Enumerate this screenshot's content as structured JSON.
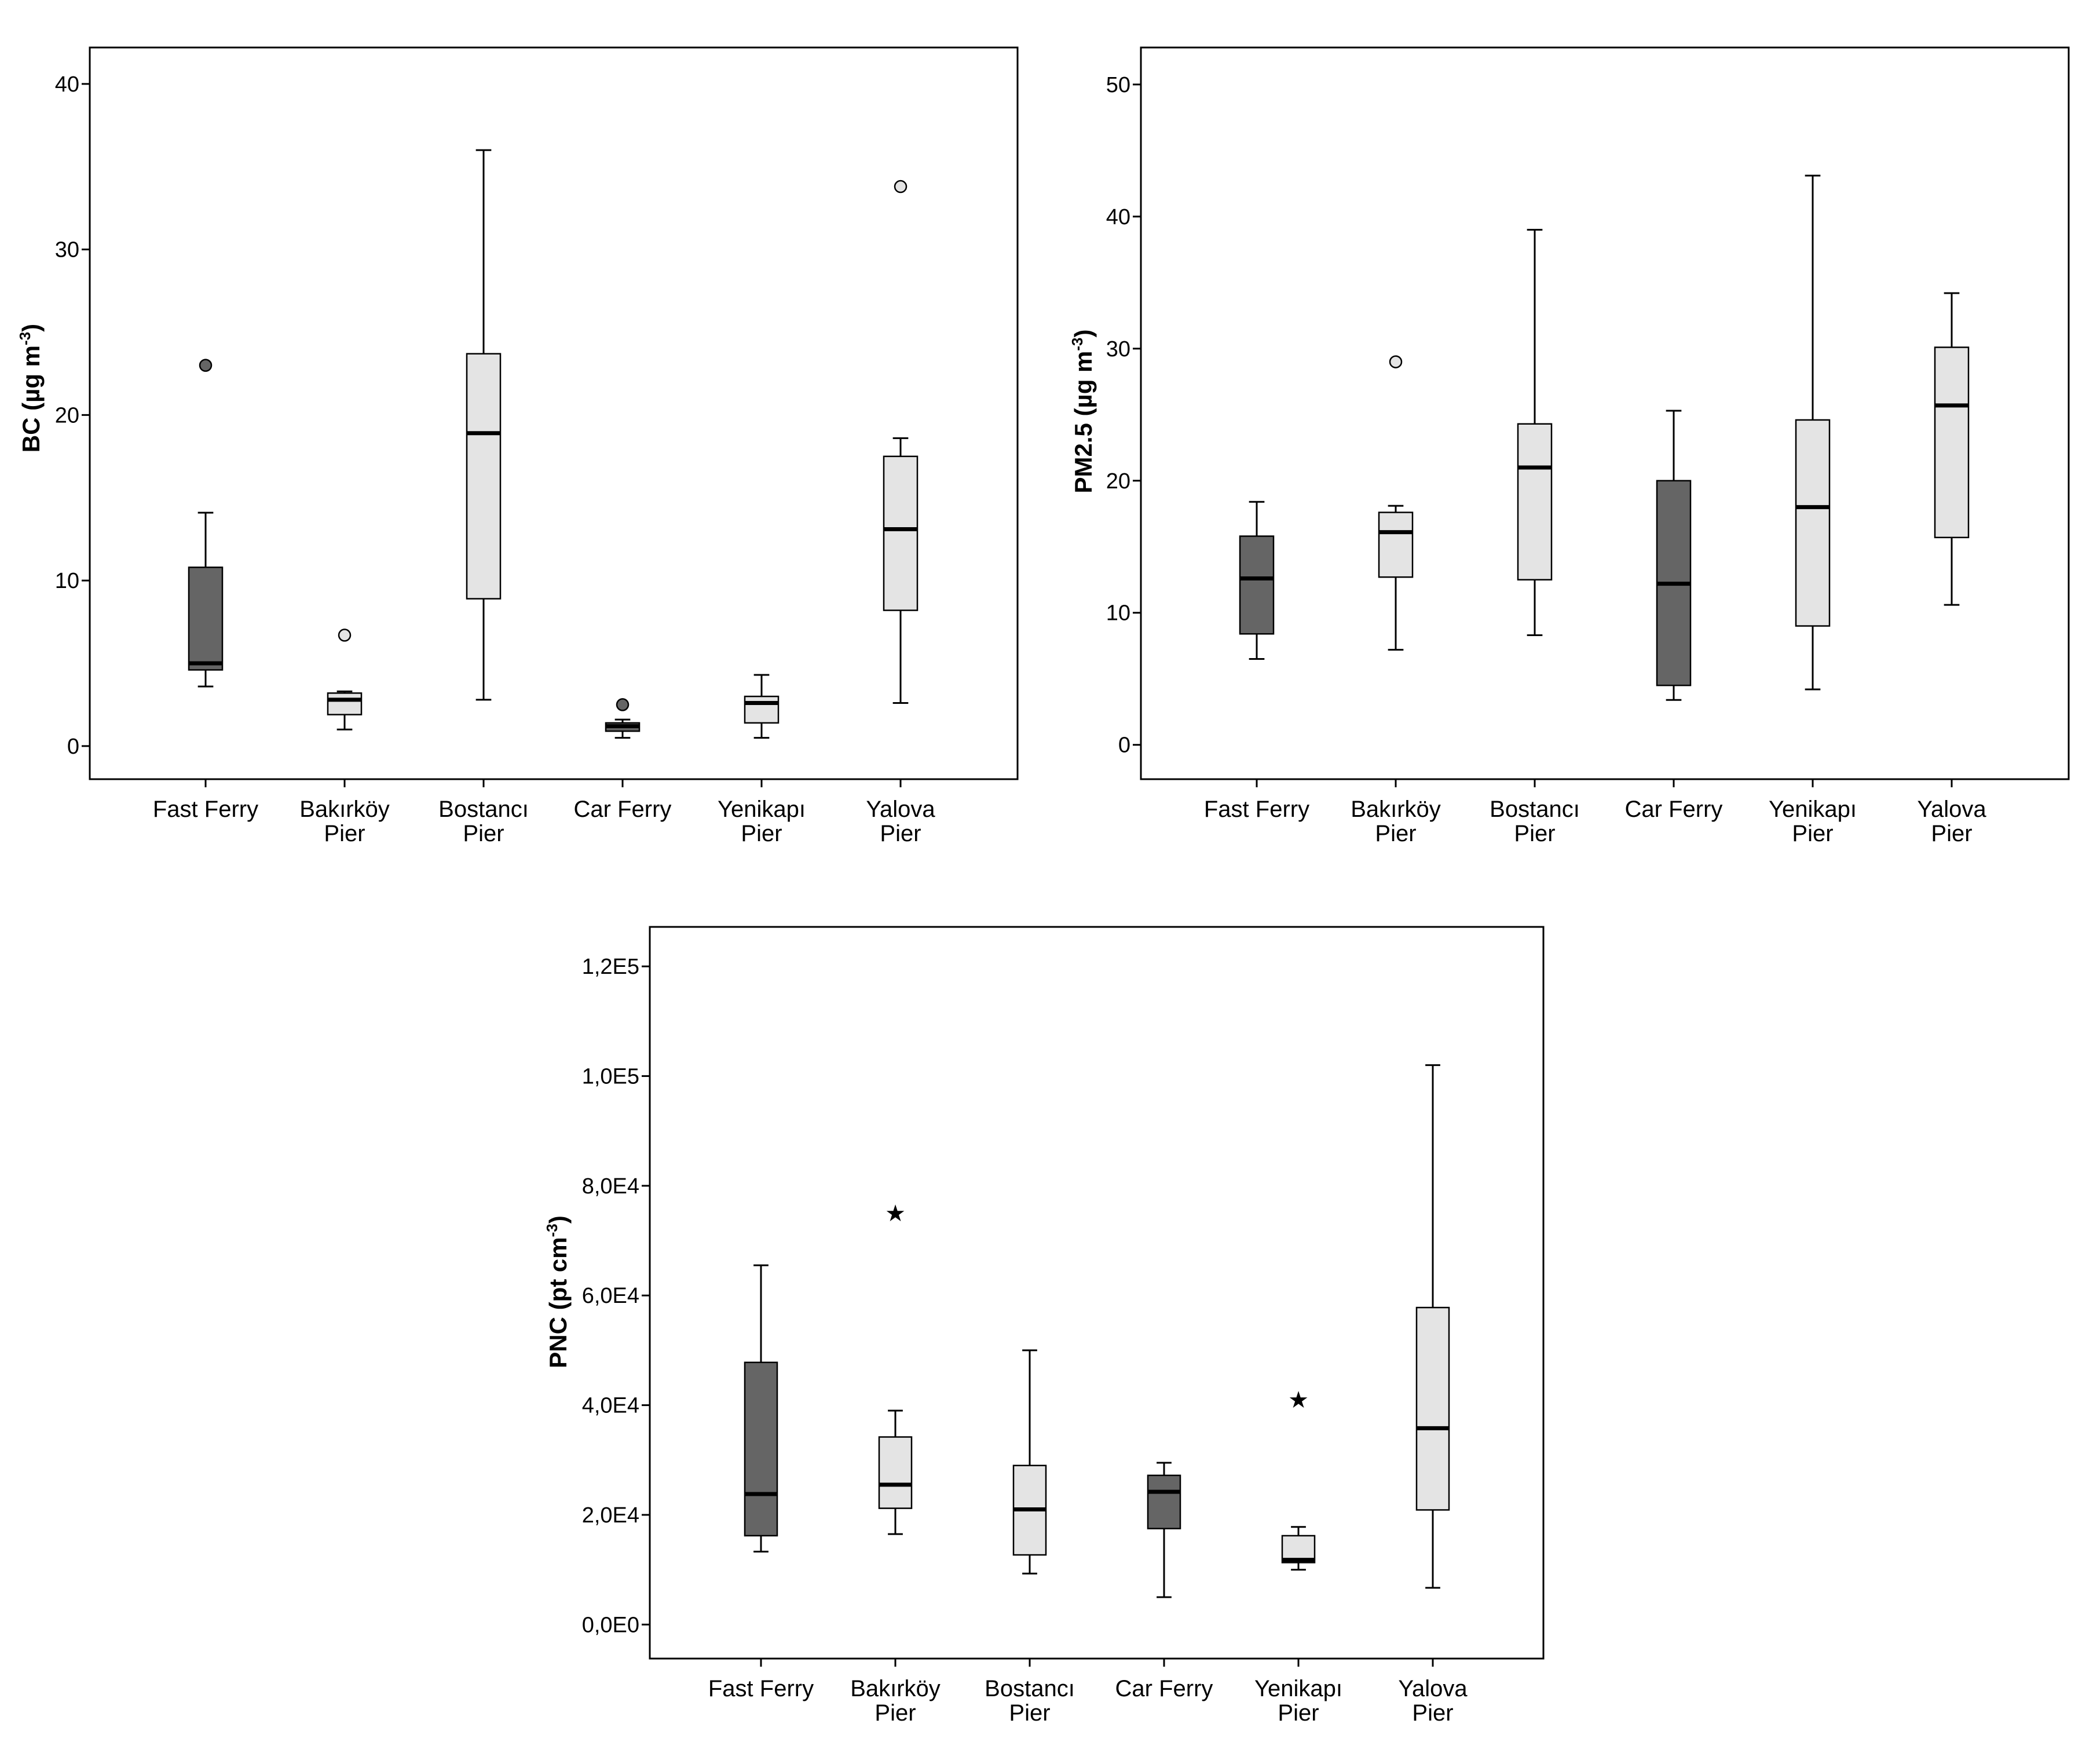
{
  "chart_data": [
    {
      "type": "boxplot",
      "ylabel": {
        "main": "BC (µg m",
        "sup": "-3",
        "end": ")"
      },
      "ylim": [
        -2,
        42.2
      ],
      "yticks": [
        0,
        10,
        20,
        30,
        40
      ],
      "ytick_labels": [
        "0",
        "10",
        "20",
        "30",
        "40"
      ],
      "categories": [
        {
          "line1": "Fast Ferry",
          "line2": ""
        },
        {
          "line1": "Bakırköy",
          "line2": "Pier"
        },
        {
          "line1": "Bostancı",
          "line2": "Pier"
        },
        {
          "line1": "Car Ferry",
          "line2": ""
        },
        {
          "line1": "Yenikapı",
          "line2": "Pier"
        },
        {
          "line1": "Yalova",
          "line2": "Pier"
        }
      ],
      "boxes": [
        {
          "shade": "dark",
          "min": 3.6,
          "q1": 4.6,
          "median": 5.0,
          "q3": 10.8,
          "max": 14.1,
          "outliers": [
            {
              "v": 23.0,
              "kind": "circle"
            }
          ]
        },
        {
          "shade": "light",
          "min": 1.0,
          "q1": 1.9,
          "median": 2.8,
          "q3": 3.2,
          "max": 3.3,
          "outliers": [
            {
              "v": 6.7,
              "kind": "circle"
            }
          ]
        },
        {
          "shade": "light",
          "min": 2.8,
          "q1": 8.9,
          "median": 18.9,
          "q3": 23.7,
          "max": 36.0,
          "outliers": []
        },
        {
          "shade": "dark",
          "min": 0.5,
          "q1": 0.9,
          "median": 1.2,
          "q3": 1.4,
          "max": 1.6,
          "outliers": [
            {
              "v": 2.5,
              "kind": "circle"
            }
          ]
        },
        {
          "shade": "light",
          "min": 0.5,
          "q1": 1.4,
          "median": 2.6,
          "q3": 3.0,
          "max": 4.3,
          "outliers": []
        },
        {
          "shade": "light",
          "min": 2.6,
          "q1": 8.2,
          "median": 13.1,
          "q3": 17.5,
          "max": 18.6,
          "outliers": [
            {
              "v": 33.8,
              "kind": "circle"
            }
          ]
        }
      ]
    },
    {
      "type": "boxplot",
      "ylabel": {
        "main": "PM2.5   (µg m",
        "sup": "-3",
        "end": ")"
      },
      "ylim": [
        -2.6,
        52.8
      ],
      "yticks": [
        0,
        10,
        20,
        30,
        40,
        50
      ],
      "ytick_labels": [
        "0",
        "10",
        "20",
        "30",
        "40",
        "50"
      ],
      "categories": [
        {
          "line1": "Fast Ferry",
          "line2": ""
        },
        {
          "line1": "Bakırköy",
          "line2": "Pier"
        },
        {
          "line1": "Bostancı",
          "line2": "Pier"
        },
        {
          "line1": "Car Ferry",
          "line2": ""
        },
        {
          "line1": "Yenikapı",
          "line2": "Pier"
        },
        {
          "line1": "Yalova",
          "line2": "Pier"
        }
      ],
      "boxes": [
        {
          "shade": "dark",
          "min": 6.5,
          "q1": 8.4,
          "median": 12.6,
          "q3": 15.8,
          "max": 18.4,
          "outliers": []
        },
        {
          "shade": "light",
          "min": 7.2,
          "q1": 12.7,
          "median": 16.1,
          "q3": 17.6,
          "max": 18.1,
          "outliers": [
            {
              "v": 29.0,
              "kind": "circle"
            }
          ]
        },
        {
          "shade": "light",
          "min": 8.3,
          "q1": 12.5,
          "median": 21.0,
          "q3": 24.3,
          "max": 39.0,
          "outliers": []
        },
        {
          "shade": "dark",
          "min": 3.4,
          "q1": 4.5,
          "median": 12.2,
          "q3": 20.0,
          "max": 25.3,
          "outliers": []
        },
        {
          "shade": "light",
          "min": 4.2,
          "q1": 9.0,
          "median": 18.0,
          "q3": 24.6,
          "max": 43.1,
          "outliers": []
        },
        {
          "shade": "light",
          "min": 10.6,
          "q1": 15.7,
          "median": 25.7,
          "q3": 30.1,
          "max": 34.2,
          "outliers": []
        }
      ]
    },
    {
      "type": "boxplot",
      "ylabel": {
        "main": "PNC (pt cm",
        "sup": "-3",
        "end": ")"
      },
      "ylim": [
        -6200,
        127200
      ],
      "yticks": [
        0,
        20000,
        40000,
        60000,
        80000,
        100000,
        120000
      ],
      "ytick_labels": [
        "0,0E0",
        "2,0E4",
        "4,0E4",
        "6,0E4",
        "8,0E4",
        "1,0E5",
        "1,2E5"
      ],
      "categories": [
        {
          "line1": "Fast Ferry",
          "line2": ""
        },
        {
          "line1": "Bakırköy",
          "line2": "Pier"
        },
        {
          "line1": "Bostancı",
          "line2": "Pier"
        },
        {
          "line1": "Car Ferry",
          "line2": ""
        },
        {
          "line1": "Yenikapı",
          "line2": "Pier"
        },
        {
          "line1": "Yalova",
          "line2": "Pier"
        }
      ],
      "boxes": [
        {
          "shade": "dark",
          "min": 13300,
          "q1": 16200,
          "median": 23800,
          "q3": 47800,
          "max": 65500,
          "outliers": []
        },
        {
          "shade": "light",
          "min": 16500,
          "q1": 21200,
          "median": 25500,
          "q3": 34200,
          "max": 39000,
          "outliers": [
            {
              "v": 75000,
              "kind": "star"
            }
          ]
        },
        {
          "shade": "light",
          "min": 9300,
          "q1": 12700,
          "median": 21000,
          "q3": 29000,
          "max": 50000,
          "outliers": []
        },
        {
          "shade": "dark",
          "min": 5000,
          "q1": 17500,
          "median": 24200,
          "q3": 27200,
          "max": 29500,
          "outliers": []
        },
        {
          "shade": "light",
          "min": 10000,
          "q1": 11300,
          "median": 11800,
          "q3": 16200,
          "max": 17800,
          "outliers": [
            {
              "v": 41000,
              "kind": "star"
            }
          ]
        },
        {
          "shade": "light",
          "min": 6700,
          "q1": 20900,
          "median": 35800,
          "q3": 57800,
          "max": 102000,
          "outliers": []
        }
      ]
    }
  ],
  "colors": {
    "dark": "#656565",
    "light": "#e4e4e4",
    "star": "#d2d2d2",
    "axis": "#000000"
  }
}
